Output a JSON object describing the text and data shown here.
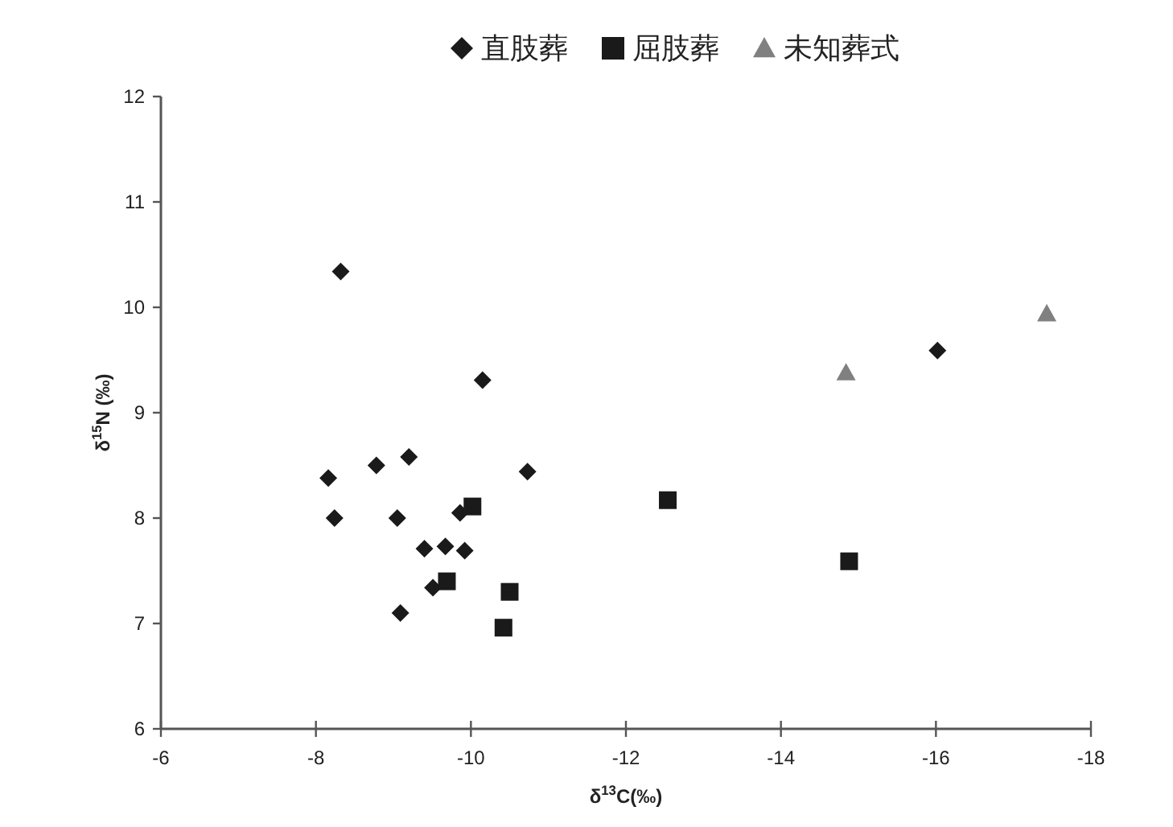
{
  "chart_data": {
    "type": "scatter",
    "xlabel": "δ$^{13}$C(‰)",
    "ylabel": "δ$^{15}$N (‰)",
    "xlim": [
      -6,
      -18
    ],
    "xticks": [
      -6,
      -8,
      -10,
      -12,
      -14,
      -16,
      -18
    ],
    "ylim": [
      6,
      12
    ],
    "yticks": [
      6,
      7,
      8,
      9,
      10,
      11,
      12
    ],
    "grid": false,
    "legend": "top",
    "series": [
      {
        "name": "直肢葬",
        "color": "#1a1a1a",
        "marker": "diamond",
        "x": [
          -8.32,
          -10.15,
          -16.02,
          -8.16,
          -8.78,
          -9.2,
          -10.73,
          -8.24,
          -9.05,
          -9.86,
          -9.4,
          -9.67,
          -9.92,
          -9.51,
          -9.09
        ],
        "values": [
          10.34,
          9.31,
          9.59,
          8.38,
          8.5,
          8.58,
          8.44,
          8.0,
          8.0,
          8.05,
          7.71,
          7.73,
          7.69,
          7.34,
          7.1
        ]
      },
      {
        "name": "屈肢葬",
        "color": "#1a1a1a",
        "marker": "square",
        "x": [
          -10.02,
          -9.69,
          -10.5,
          -10.42,
          -12.54,
          -14.88
        ],
        "values": [
          8.11,
          7.4,
          7.3,
          6.96,
          8.17,
          7.59
        ]
      },
      {
        "name": "未知葬式",
        "color": "#808080",
        "marker": "triangle",
        "x": [
          -14.84,
          -17.43
        ],
        "values": [
          9.38,
          9.94
        ]
      }
    ]
  }
}
